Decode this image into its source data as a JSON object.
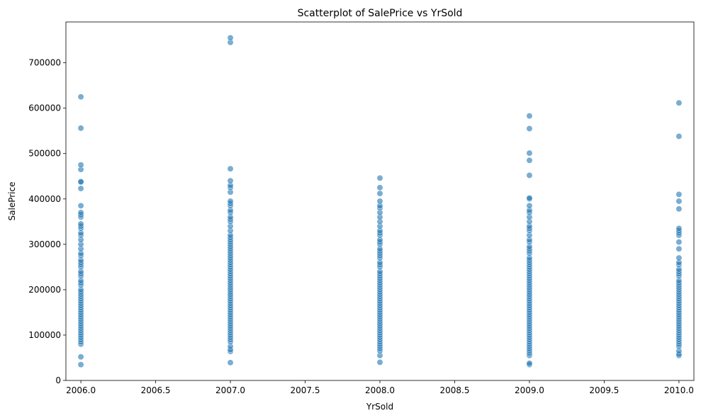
{
  "chart_data": {
    "type": "scatter",
    "title": "Scatterplot of SalePrice vs YrSold",
    "xlabel": "YrSold",
    "ylabel": "SalePrice",
    "xlim": [
      2005.9,
      2010.1
    ],
    "ylim": [
      0,
      790000
    ],
    "xticks": [
      2006.0,
      2006.5,
      2007.0,
      2007.5,
      2008.0,
      2008.5,
      2009.0,
      2009.5,
      2010.0
    ],
    "xtick_labels": [
      "2006.0",
      "2006.5",
      "2007.0",
      "2007.5",
      "2008.0",
      "2008.5",
      "2009.0",
      "2009.5",
      "2010.0"
    ],
    "yticks": [
      0,
      100000,
      200000,
      300000,
      400000,
      500000,
      600000,
      700000
    ],
    "ytick_labels": [
      "0",
      "100000",
      "200000",
      "300000",
      "400000",
      "500000",
      "600000",
      "700000"
    ],
    "grid": false,
    "point_color": "#1f77b4",
    "series": [
      {
        "x": 2006,
        "y": [
          34900,
          52000,
          80000,
          85000,
          90000,
          95000,
          100000,
          105000,
          110000,
          115000,
          120000,
          125000,
          130000,
          135000,
          140000,
          145000,
          150000,
          155000,
          160000,
          165000,
          170000,
          175000,
          180000,
          185000,
          190000,
          195000,
          200000,
          210000,
          215000,
          220000,
          230000,
          235000,
          240000,
          250000,
          255000,
          260000,
          265000,
          275000,
          280000,
          290000,
          300000,
          310000,
          320000,
          325000,
          335000,
          340000,
          345000,
          360000,
          365000,
          370000,
          385000,
          423000,
          437000,
          438000,
          465000,
          475000,
          556000,
          625000
        ]
      },
      {
        "x": 2007,
        "y": [
          39300,
          64000,
          68000,
          75000,
          85000,
          90000,
          95000,
          100000,
          105000,
          110000,
          115000,
          120000,
          125000,
          130000,
          135000,
          140000,
          145000,
          150000,
          155000,
          160000,
          165000,
          170000,
          175000,
          180000,
          185000,
          190000,
          195000,
          200000,
          205000,
          210000,
          215000,
          220000,
          225000,
          230000,
          235000,
          240000,
          245000,
          250000,
          255000,
          260000,
          265000,
          270000,
          275000,
          280000,
          285000,
          290000,
          295000,
          300000,
          305000,
          310000,
          315000,
          320000,
          330000,
          340000,
          350000,
          355000,
          360000,
          370000,
          375000,
          385000,
          390000,
          395000,
          415000,
          425000,
          430000,
          440000,
          466500,
          745000,
          755000
        ]
      },
      {
        "x": 2008,
        "y": [
          40000,
          55000,
          65000,
          70000,
          75000,
          80000,
          85000,
          90000,
          95000,
          100000,
          105000,
          110000,
          115000,
          120000,
          125000,
          130000,
          135000,
          140000,
          145000,
          150000,
          155000,
          160000,
          165000,
          170000,
          175000,
          180000,
          185000,
          190000,
          195000,
          200000,
          205000,
          210000,
          215000,
          220000,
          225000,
          230000,
          235000,
          240000,
          250000,
          255000,
          260000,
          270000,
          275000,
          280000,
          285000,
          290000,
          300000,
          305000,
          310000,
          320000,
          325000,
          330000,
          340000,
          350000,
          360000,
          370000,
          380000,
          385000,
          395000,
          412000,
          425000,
          446000
        ]
      },
      {
        "x": 2009,
        "y": [
          34900,
          37900,
          55000,
          60000,
          65000,
          70000,
          75000,
          80000,
          85000,
          90000,
          95000,
          100000,
          105000,
          110000,
          115000,
          120000,
          125000,
          130000,
          135000,
          140000,
          145000,
          150000,
          155000,
          160000,
          165000,
          170000,
          175000,
          180000,
          185000,
          190000,
          195000,
          200000,
          205000,
          210000,
          215000,
          220000,
          225000,
          230000,
          235000,
          240000,
          245000,
          250000,
          255000,
          260000,
          265000,
          270000,
          280000,
          285000,
          290000,
          295000,
          305000,
          310000,
          320000,
          330000,
          335000,
          340000,
          350000,
          360000,
          370000,
          375000,
          385000,
          400000,
          402000,
          452000,
          485000,
          501000,
          555000,
          582933
        ]
      },
      {
        "x": 2010,
        "y": [
          55000,
          58000,
          65000,
          75000,
          80000,
          85000,
          90000,
          95000,
          100000,
          105000,
          110000,
          115000,
          120000,
          125000,
          130000,
          135000,
          140000,
          145000,
          150000,
          155000,
          160000,
          165000,
          170000,
          175000,
          180000,
          185000,
          190000,
          195000,
          200000,
          205000,
          210000,
          215000,
          220000,
          230000,
          235000,
          240000,
          245000,
          255000,
          260000,
          270000,
          290000,
          305000,
          320000,
          325000,
          330000,
          335000,
          378000,
          395000,
          410000,
          538000,
          611657
        ]
      }
    ]
  }
}
